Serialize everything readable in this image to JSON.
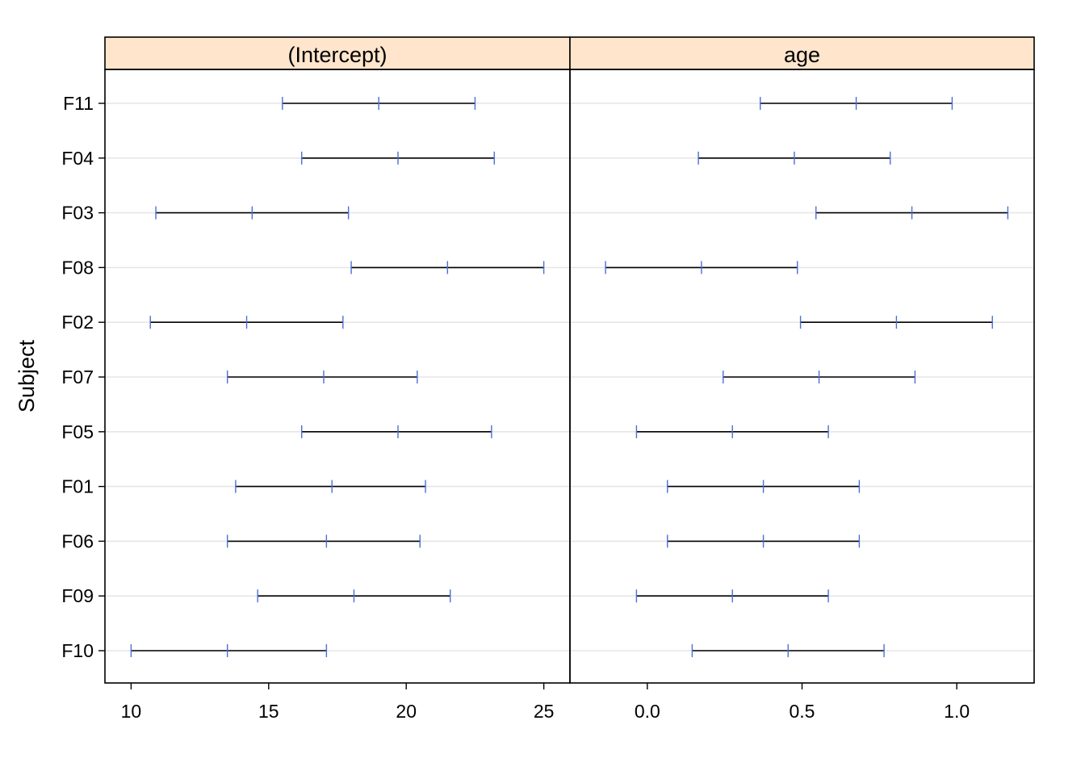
{
  "chart_data": {
    "type": "interval",
    "ylabel": "Subject",
    "categories": [
      "F11",
      "F04",
      "F03",
      "F08",
      "F02",
      "F07",
      "F05",
      "F01",
      "F06",
      "F09",
      "F10"
    ],
    "colors": {
      "strip_background": "#FFE5CC",
      "interval_line": "#000000",
      "endpoint_ticks": "#4A6FD6",
      "gridline": "#E6E6E6",
      "frame": "#000000"
    },
    "grid": true,
    "panels": [
      {
        "strip": "(Intercept)",
        "xlim": [
          9.05,
          25.95
        ],
        "xticks": [
          10,
          15,
          20,
          25
        ],
        "xtick_labels": [
          "10",
          "15",
          "20",
          "25"
        ],
        "intervals": [
          {
            "subject": "F11",
            "lower": 15.5,
            "est": 19.0,
            "upper": 22.5
          },
          {
            "subject": "F04",
            "lower": 16.2,
            "est": 19.7,
            "upper": 23.2
          },
          {
            "subject": "F03",
            "lower": 10.9,
            "est": 14.4,
            "upper": 17.9
          },
          {
            "subject": "F08",
            "lower": 18.0,
            "est": 21.5,
            "upper": 25.0
          },
          {
            "subject": "F02",
            "lower": 10.7,
            "est": 14.2,
            "upper": 17.7
          },
          {
            "subject": "F07",
            "lower": 13.5,
            "est": 17.0,
            "upper": 20.4
          },
          {
            "subject": "F05",
            "lower": 16.2,
            "est": 19.7,
            "upper": 23.1
          },
          {
            "subject": "F01",
            "lower": 13.8,
            "est": 17.3,
            "upper": 20.7
          },
          {
            "subject": "F06",
            "lower": 13.5,
            "est": 17.1,
            "upper": 20.5
          },
          {
            "subject": "F09",
            "lower": 14.6,
            "est": 18.1,
            "upper": 21.6
          },
          {
            "subject": "F10",
            "lower": 10.0,
            "est": 13.5,
            "upper": 17.1
          }
        ]
      },
      {
        "strip": "age",
        "xlim": [
          -0.25,
          1.25
        ],
        "xticks": [
          0.0,
          0.5,
          1.0
        ],
        "xtick_labels": [
          "0.0",
          "0.5",
          "1.0"
        ],
        "intervals": [
          {
            "subject": "F11",
            "lower": 0.365,
            "est": 0.675,
            "upper": 0.985
          },
          {
            "subject": "F04",
            "lower": 0.165,
            "est": 0.475,
            "upper": 0.785
          },
          {
            "subject": "F03",
            "lower": 0.545,
            "est": 0.855,
            "upper": 1.165
          },
          {
            "subject": "F08",
            "lower": -0.135,
            "est": 0.175,
            "upper": 0.485
          },
          {
            "subject": "F02",
            "lower": 0.495,
            "est": 0.805,
            "upper": 1.115
          },
          {
            "subject": "F07",
            "lower": 0.245,
            "est": 0.555,
            "upper": 0.865
          },
          {
            "subject": "F05",
            "lower": -0.035,
            "est": 0.275,
            "upper": 0.585
          },
          {
            "subject": "F01",
            "lower": 0.065,
            "est": 0.375,
            "upper": 0.685
          },
          {
            "subject": "F06",
            "lower": 0.065,
            "est": 0.375,
            "upper": 0.685
          },
          {
            "subject": "F09",
            "lower": -0.035,
            "est": 0.275,
            "upper": 0.585
          },
          {
            "subject": "F10",
            "lower": 0.145,
            "est": 0.455,
            "upper": 0.765
          }
        ]
      }
    ]
  }
}
